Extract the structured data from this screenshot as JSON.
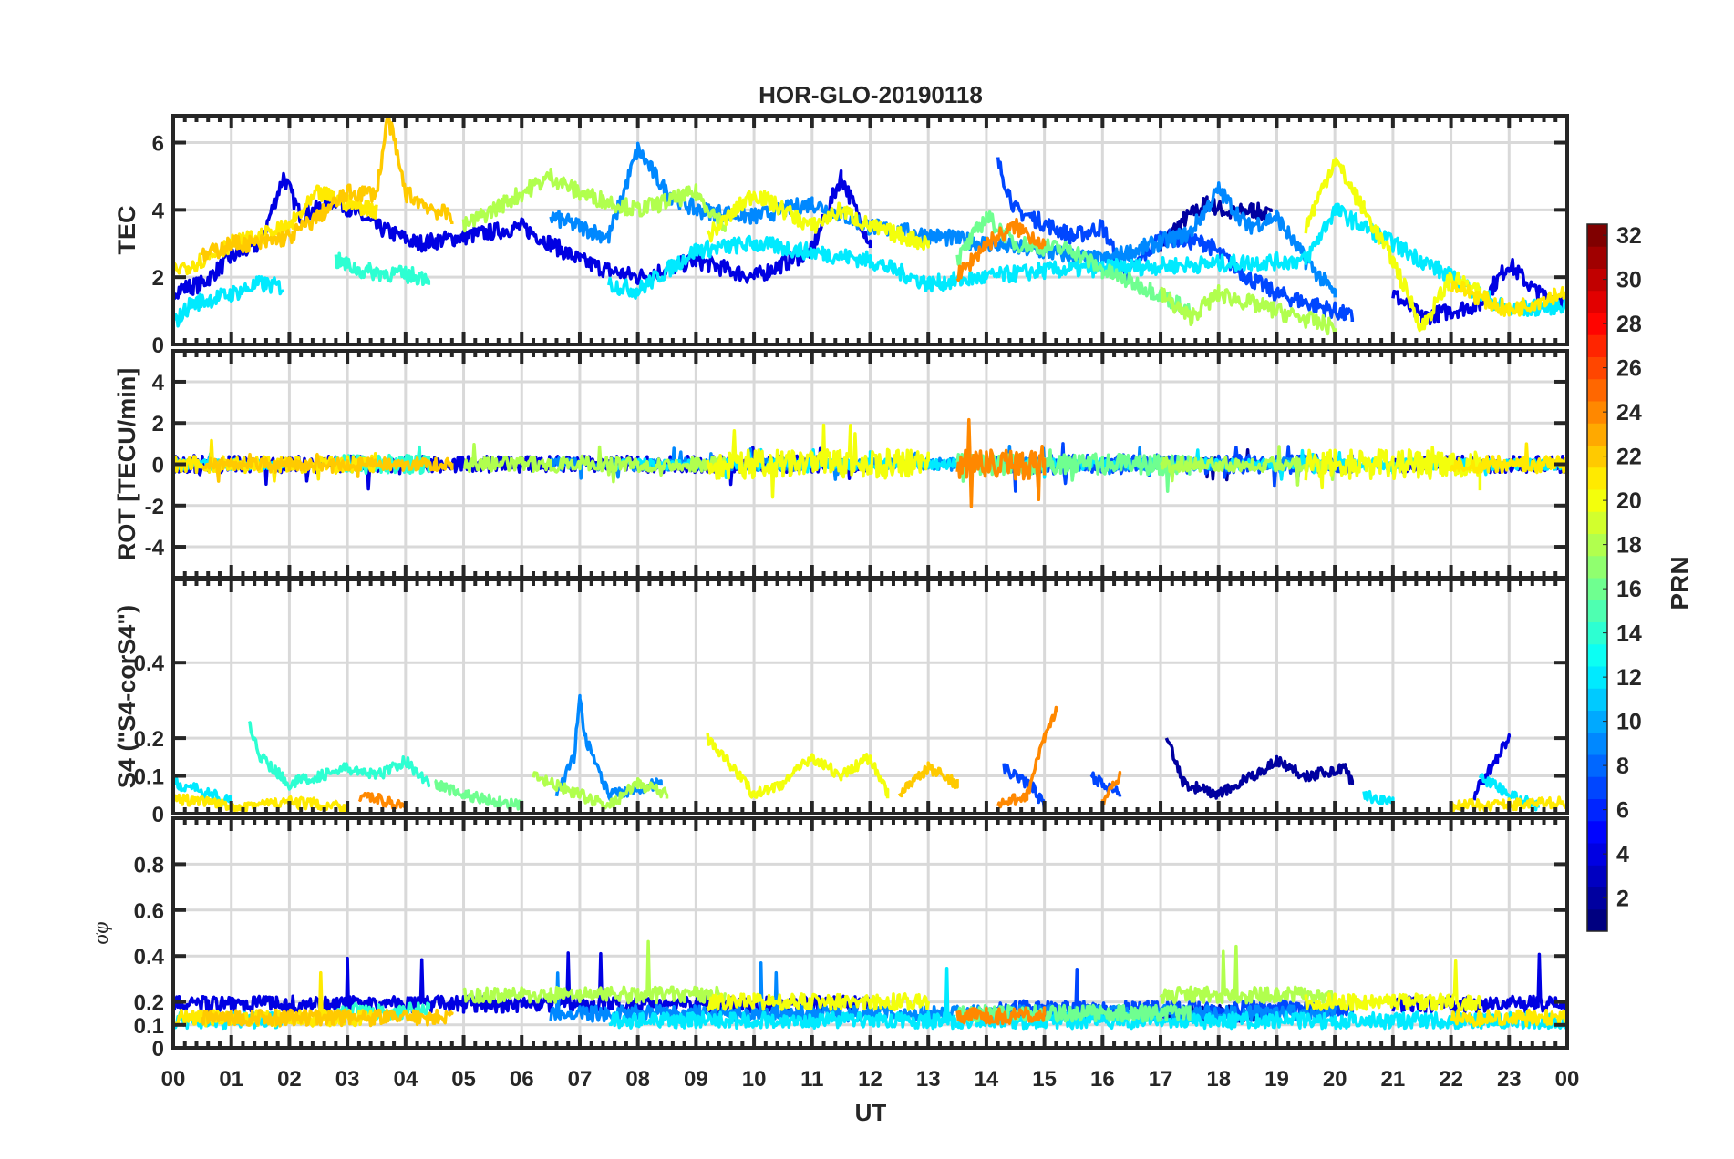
{
  "chart_data": {
    "type": "line",
    "title": "HOR-GLO-20190118",
    "xlabel": "UT",
    "xlim": [
      0,
      24
    ],
    "xticks": [
      "00",
      "01",
      "02",
      "03",
      "04",
      "05",
      "06",
      "07",
      "08",
      "09",
      "10",
      "11",
      "12",
      "13",
      "14",
      "15",
      "16",
      "17",
      "18",
      "19",
      "20",
      "21",
      "22",
      "23",
      "00"
    ],
    "grid": true,
    "colorbar": {
      "label": "PRN",
      "range": [
        1,
        32
      ],
      "colormap": "jet",
      "ticks": [
        "2",
        "4",
        "6",
        "8",
        "10",
        "12",
        "14",
        "16",
        "18",
        "20",
        "22",
        "24",
        "26",
        "28",
        "30",
        "32"
      ]
    },
    "panels": [
      {
        "key": "tec",
        "ylabel": "TEC",
        "ylim": [
          0,
          6.8
        ],
        "yticks": [
          0,
          2,
          4,
          6
        ],
        "ytick_labels": [
          "0",
          "2",
          "4",
          "6"
        ]
      },
      {
        "key": "rot",
        "ylabel": "ROT [TECU/min]",
        "ylim": [
          -5.5,
          5.5
        ],
        "yticks": [
          -4,
          -2,
          0,
          2,
          4
        ],
        "ytick_labels": [
          "-4",
          "-2",
          "0",
          "2",
          "4"
        ]
      },
      {
        "key": "s4",
        "ylabel": "S4 (\"S4-corS4\")",
        "ylim": [
          0,
          0.62
        ],
        "yticks": [
          0,
          0.1,
          0.2,
          0.4
        ],
        "ytick_labels": [
          "0",
          "0.1",
          "0.2",
          "0.4"
        ]
      },
      {
        "key": "sigma",
        "ylabel": "σφ",
        "ylim": [
          0,
          1
        ],
        "yticks": [
          0,
          0.1,
          0.2,
          0.4,
          0.6,
          0.8
        ],
        "ytick_labels": [
          "0",
          "0.1",
          "0.2",
          "0.4",
          "0.6",
          "0.8"
        ]
      }
    ],
    "series": [
      {
        "name": "PRN 2",
        "prn": 2,
        "rot_amp": 0.5,
        "sigma_base": 0.15,
        "tec": [
          [
            [
              17.0,
              3.0
            ],
            [
              17.4,
              3.7
            ],
            [
              17.8,
              4.2
            ],
            [
              18.2,
              3.9
            ],
            [
              18.6,
              4.0
            ],
            [
              18.9,
              3.8
            ]
          ]
        ],
        "s4": [
          [
            [
              17.1,
              0.2
            ],
            [
              17.4,
              0.08
            ],
            [
              18.0,
              0.05
            ],
            [
              18.6,
              0.1
            ],
            [
              19.0,
              0.14
            ],
            [
              19.5,
              0.1
            ],
            [
              20.2,
              0.12
            ],
            [
              20.3,
              0.08
            ]
          ]
        ]
      },
      {
        "name": "PRN 4",
        "prn": 4,
        "rot_amp": 0.8,
        "sigma_base": 0.19,
        "tec": [
          [
            [
              0,
              1.6
            ],
            [
              0.5,
              1.8
            ],
            [
              1,
              2.6
            ],
            [
              1.5,
              3.0
            ],
            [
              1.9,
              5.0
            ],
            [
              2.2,
              3.8
            ],
            [
              2.8,
              4.3
            ],
            [
              3.5,
              3.5
            ],
            [
              4.2,
              3.0
            ],
            [
              5.0,
              3.2
            ],
            [
              6,
              3.5
            ],
            [
              7,
              2.5
            ],
            [
              7.5,
              2.2
            ],
            [
              8,
              2.0
            ],
            [
              9,
              2.5
            ],
            [
              10,
              2.0
            ],
            [
              11,
              2.8
            ],
            [
              11.5,
              5.0
            ],
            [
              12,
              3.0
            ]
          ],
          [
            [
              21,
              1.5
            ],
            [
              21.5,
              0.8
            ],
            [
              22,
              1.0
            ],
            [
              22.5,
              1.2
            ],
            [
              23,
              2.4
            ],
            [
              23.5,
              1.5
            ],
            [
              24,
              1.3
            ]
          ]
        ],
        "s4": [
          [
            [
              22.4,
              0.05
            ],
            [
              22.8,
              0.15
            ],
            [
              23.0,
              0.2
            ]
          ]
        ]
      },
      {
        "name": "PRN 7",
        "prn": 7,
        "rot_amp": 0.9,
        "sigma_base": 0.17,
        "tec": [
          [
            [
              14.2,
              5.4
            ],
            [
              14.5,
              4.0
            ],
            [
              15.5,
              3.2
            ],
            [
              16,
              3.5
            ],
            [
              16.4,
              2.0
            ],
            [
              17,
              3.2
            ],
            [
              17.8,
              3.0
            ],
            [
              18.5,
              2.0
            ],
            [
              19,
              1.5
            ],
            [
              20,
              1.0
            ],
            [
              20.3,
              0.8
            ]
          ]
        ],
        "s4": [
          [
            [
              14.3,
              0.12
            ],
            [
              14.8,
              0.07
            ],
            [
              15.0,
              0.02
            ]
          ],
          [
            [
              15.8,
              0.1
            ],
            [
              16.3,
              0.05
            ]
          ]
        ]
      },
      {
        "name": "PRN 9",
        "prn": 9,
        "rot_amp": 0.6,
        "sigma_base": 0.15,
        "tec": [
          [
            [
              6.5,
              3.8
            ],
            [
              7.5,
              3.2
            ],
            [
              8,
              5.8
            ],
            [
              8.5,
              4.5
            ],
            [
              9,
              4.0
            ],
            [
              10,
              3.8
            ],
            [
              11,
              4.2
            ],
            [
              12,
              3.5
            ],
            [
              14,
              3.0
            ],
            [
              16,
              2.5
            ],
            [
              17.5,
              3.3
            ],
            [
              18,
              4.6
            ],
            [
              18.5,
              3.5
            ],
            [
              19,
              3.8
            ],
            [
              19.5,
              2.5
            ],
            [
              20,
              1.5
            ]
          ]
        ],
        "s4": [
          [
            [
              6.6,
              0.05
            ],
            [
              6.9,
              0.15
            ],
            [
              7.0,
              0.3
            ],
            [
              7.1,
              0.2
            ],
            [
              7.5,
              0.05
            ],
            [
              8.4,
              0.08
            ]
          ]
        ]
      },
      {
        "name": "PRN 12",
        "prn": 12,
        "rot_amp": 0.5,
        "sigma_base": 0.12,
        "tec": [
          [
            [
              0,
              0.6
            ],
            [
              0.3,
              1.2
            ],
            [
              1,
              1.5
            ],
            [
              1.5,
              1.8
            ],
            [
              1.9,
              1.7
            ]
          ],
          [
            [
              7.5,
              1.8
            ],
            [
              8,
              1.6
            ],
            [
              9,
              2.8
            ],
            [
              10,
              3.0
            ],
            [
              12,
              2.5
            ],
            [
              13,
              1.8
            ],
            [
              15,
              2.2
            ],
            [
              19.5,
              2.5
            ],
            [
              20,
              4.0
            ],
            [
              21,
              3.0
            ],
            [
              23,
              1.0
            ],
            [
              24,
              1.2
            ]
          ]
        ],
        "s4": [
          [
            [
              0,
              0.08
            ],
            [
              0.5,
              0.06
            ],
            [
              1,
              0.03
            ]
          ],
          [
            [
              20.5,
              0.05
            ],
            [
              21,
              0.03
            ]
          ],
          [
            [
              22.5,
              0.1
            ],
            [
              23,
              0.05
            ],
            [
              23.5,
              0.02
            ]
          ]
        ]
      },
      {
        "name": "PRN 14",
        "prn": 14,
        "rot_amp": 0.9,
        "sigma_base": 0.16,
        "tec": [
          [
            [
              2.8,
              2.5
            ],
            [
              3.2,
              2.2
            ],
            [
              4.4,
              2.0
            ]
          ]
        ],
        "s4": [
          [
            [
              1.3,
              0.25
            ],
            [
              1.5,
              0.15
            ],
            [
              2,
              0.08
            ],
            [
              3,
              0.12
            ],
            [
              3.5,
              0.1
            ],
            [
              4,
              0.14
            ],
            [
              4.4,
              0.08
            ]
          ]
        ]
      },
      {
        "name": "PRN 16",
        "prn": 16,
        "rot_amp": 1.0,
        "sigma_base": 0.15,
        "tec": [
          [
            [
              13.5,
              2.5
            ],
            [
              14,
              3.8
            ],
            [
              14.5,
              3.0
            ],
            [
              15.5,
              2.8
            ],
            [
              16,
              2.2
            ],
            [
              17,
              1.5
            ],
            [
              17.5,
              1.0
            ]
          ]
        ],
        "s4": [
          [
            [
              4.5,
              0.08
            ],
            [
              5,
              0.05
            ],
            [
              6,
              0.02
            ]
          ]
        ]
      },
      {
        "name": "PRN 18",
        "prn": 18,
        "rot_amp": 0.7,
        "sigma_base": 0.23,
        "tec": [
          [
            [
              5.0,
              3.5
            ],
            [
              6,
              4.5
            ],
            [
              6.5,
              5.0
            ],
            [
              7,
              4.5
            ],
            [
              8,
              4.0
            ],
            [
              9,
              4.5
            ],
            [
              9.5,
              3.5
            ]
          ],
          [
            [
              17,
              1.5
            ],
            [
              17.5,
              0.8
            ],
            [
              18,
              1.5
            ],
            [
              19,
              1.0
            ],
            [
              20,
              0.5
            ]
          ]
        ],
        "s4": [
          [
            [
              6.2,
              0.1
            ],
            [
              6.5,
              0.08
            ],
            [
              7.5,
              0.02
            ],
            [
              8,
              0.08
            ],
            [
              8.5,
              0.05
            ]
          ]
        ]
      },
      {
        "name": "PRN 20",
        "prn": 20,
        "rot_amp": 1.4,
        "sigma_base": 0.2,
        "tec": [
          [
            [
              9.2,
              3.2
            ],
            [
              10,
              4.5
            ],
            [
              11,
              3.5
            ],
            [
              11.5,
              4.0
            ],
            [
              12,
              3.5
            ],
            [
              13,
              3.0
            ]
          ],
          [
            [
              19.5,
              3.5
            ],
            [
              20,
              5.5
            ],
            [
              20.5,
              4.0
            ],
            [
              21,
              2.5
            ],
            [
              21.5,
              0.5
            ],
            [
              22,
              2.0
            ],
            [
              22.5,
              1.5
            ]
          ]
        ],
        "s4": [
          [
            [
              9.2,
              0.2
            ],
            [
              9.5,
              0.15
            ],
            [
              10,
              0.05
            ],
            [
              10.5,
              0.08
            ],
            [
              11,
              0.15
            ],
            [
              11.5,
              0.1
            ],
            [
              12,
              0.15
            ],
            [
              12.3,
              0.05
            ]
          ]
        ]
      },
      {
        "name": "PRN 21",
        "prn": 21,
        "rot_amp": 0.8,
        "sigma_base": 0.13,
        "tec": [
          [
            [
              0,
              2.2
            ],
            [
              0.5,
              2.5
            ],
            [
              1,
              3.0
            ],
            [
              1.5,
              3.2
            ],
            [
              2,
              3.5
            ],
            [
              2.5,
              4.5
            ],
            [
              3,
              4.2
            ],
            [
              3.5,
              4.0
            ]
          ],
          [
            [
              22,
              1.8
            ],
            [
              23,
              1.0
            ],
            [
              24,
              1.6
            ]
          ]
        ],
        "s4": [
          [
            [
              0,
              0.04
            ],
            [
              1,
              0.02
            ],
            [
              2,
              0.03
            ],
            [
              3,
              0.02
            ]
          ],
          [
            [
              22,
              0.02
            ],
            [
              24,
              0.03
            ]
          ]
        ]
      },
      {
        "name": "PRN 22",
        "prn": 22,
        "rot_amp": 0.6,
        "sigma_base": 0.13,
        "tec": [
          [
            [
              0.5,
              2.6
            ],
            [
              1,
              3.0
            ],
            [
              1.5,
              3.0
            ],
            [
              2,
              3.2
            ],
            [
              2.5,
              3.8
            ],
            [
              3,
              4.5
            ],
            [
              3.5,
              4.5
            ],
            [
              3.7,
              6.8
            ],
            [
              4,
              4.5
            ],
            [
              4.5,
              4.0
            ],
            [
              4.8,
              3.8
            ]
          ]
        ],
        "s4": [
          [
            [
              12.5,
              0.05
            ],
            [
              13,
              0.12
            ],
            [
              13.5,
              0.08
            ]
          ]
        ]
      },
      {
        "name": "PRN 24",
        "prn": 24,
        "rot_amp": 1.5,
        "sigma_base": 0.14,
        "tec": [
          [
            [
              13.5,
              2.0
            ],
            [
              14,
              3.0
            ],
            [
              14.5,
              3.5
            ],
            [
              15,
              3.0
            ]
          ]
        ],
        "s4": [
          [
            [
              3.2,
              0.05
            ],
            [
              4,
              0.02
            ]
          ],
          [
            [
              14.2,
              0.02
            ],
            [
              14.7,
              0.05
            ],
            [
              15,
              0.2
            ],
            [
              15.2,
              0.27
            ]
          ],
          [
            [
              16,
              0.03
            ],
            [
              16.3,
              0.1
            ]
          ]
        ]
      }
    ]
  }
}
